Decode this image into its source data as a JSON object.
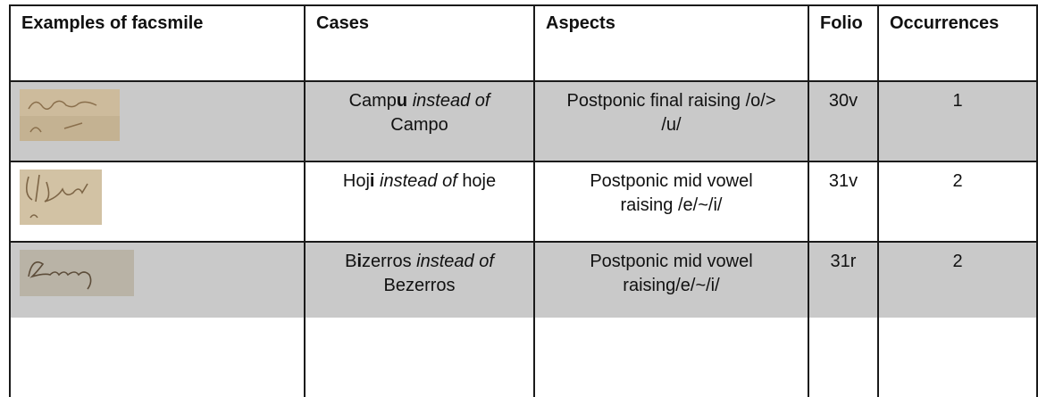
{
  "table": {
    "header": [
      "Examples of facsmile",
      "Cases",
      "Aspects",
      "Folio",
      "Occurrences"
    ],
    "rows": [
      {
        "case": [
          "Camp",
          "u",
          "instead of",
          "Campo"
        ],
        "aspect": "Postponic final raising /o/> /u/",
        "folio": "30v",
        "occurrences": 1
      },
      {
        "case": [
          "Hoj",
          "i",
          "instead of",
          "hoje"
        ],
        "aspect": "Postponic mid vowel raising /e/~/i/",
        "folio": "31v",
        "occurrences": 2
      },
      {
        "case": [
          "B",
          "i",
          "zerros",
          "instead of",
          "Bezerros"
        ],
        "aspect": "Postponic mid vowel raising/e/~/i/",
        "folio": "31r",
        "occurrences": 2
      }
    ]
  }
}
